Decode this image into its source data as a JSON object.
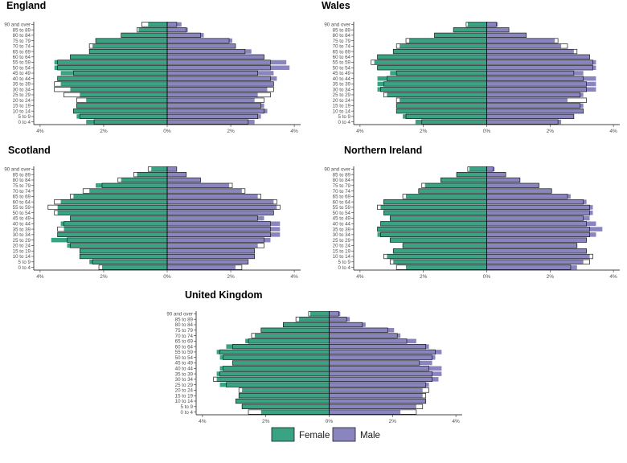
{
  "colors": {
    "female": "#3aa383",
    "male": "#8a85bf",
    "outline": "#1a1a1a",
    "axis": "#000000",
    "tick_text": "#4d4d4d"
  },
  "legend": {
    "female_label": "Female",
    "male_label": "Male"
  },
  "age_groups": [
    "0 to 4",
    "5 to 9",
    "10 to 14",
    "15 to 19",
    "20 to 24",
    "25 to 29",
    "30 to 34",
    "35 to 39",
    "40 to 44",
    "45 to 49",
    "50 to 54",
    "55 to 59",
    "60 to 64",
    "65 to 69",
    "70 to 74",
    "75 to 79",
    "80 to 84",
    "85 to 89",
    "90 and over"
  ],
  "x_ticks": [
    {
      "value": -4,
      "label": "4%"
    },
    {
      "value": -2,
      "label": "2%"
    },
    {
      "value": 0,
      "label": "0%"
    },
    {
      "value": 2,
      "label": "2%"
    },
    {
      "value": 4,
      "label": "4%"
    }
  ],
  "chart_data": [
    {
      "type": "population-pyramid",
      "title": "England",
      "xlim": [
        -4.2,
        4.2
      ],
      "unit": "% of population",
      "series": [
        {
          "name": "Female, filled bars (current)",
          "values": [
            2.55,
            2.85,
            2.95,
            2.85,
            2.55,
            2.75,
            3.05,
            3.35,
            3.45,
            3.35,
            3.55,
            3.55,
            3.05,
            2.45,
            2.35,
            2.25,
            1.45,
            0.9,
            0.6
          ]
        },
        {
          "name": "Female, outline bars (comparison)",
          "values": [
            2.3,
            2.75,
            2.95,
            2.85,
            2.85,
            3.25,
            3.55,
            3.55,
            3.45,
            2.95,
            3.45,
            3.45,
            3.05,
            2.45,
            2.45,
            2.25,
            1.45,
            0.95,
            0.8
          ]
        },
        {
          "name": "Male, filled bars (current)",
          "values": [
            2.75,
            2.95,
            3.15,
            3.05,
            2.75,
            2.85,
            3.15,
            3.35,
            3.45,
            3.35,
            3.85,
            3.75,
            3.05,
            2.65,
            2.15,
            2.05,
            1.15,
            0.65,
            0.45
          ]
        },
        {
          "name": "Male, outline bars (comparison)",
          "values": [
            2.55,
            2.85,
            3.05,
            2.95,
            3.05,
            3.25,
            3.35,
            3.35,
            3.25,
            2.85,
            3.25,
            3.25,
            3.05,
            2.45,
            2.15,
            1.95,
            1.05,
            0.6,
            0.3
          ]
        }
      ]
    },
    {
      "type": "population-pyramid",
      "title": "Wales",
      "xlim": [
        -4.2,
        4.2
      ],
      "unit": "% of population",
      "series": [
        {
          "name": "Female, filled bars (current)",
          "values": [
            2.25,
            2.65,
            2.85,
            2.85,
            2.75,
            3.15,
            3.45,
            3.45,
            3.45,
            3.05,
            3.45,
            3.55,
            3.45,
            2.95,
            2.75,
            2.45,
            1.65,
            1.05,
            0.6
          ]
        },
        {
          "name": "Female, outline bars (comparison)",
          "values": [
            2.05,
            2.55,
            2.85,
            2.85,
            2.85,
            3.25,
            3.35,
            3.25,
            3.15,
            2.85,
            3.45,
            3.65,
            3.45,
            2.95,
            2.85,
            2.55,
            1.65,
            1.05,
            0.65
          ]
        },
        {
          "name": "Male, filled bars (current)",
          "values": [
            2.35,
            2.75,
            3.05,
            3.05,
            2.55,
            3.05,
            3.45,
            3.45,
            3.45,
            3.05,
            3.45,
            3.45,
            3.25,
            2.75,
            2.35,
            2.15,
            1.25,
            0.7,
            0.35
          ]
        },
        {
          "name": "Male, outline bars (comparison)",
          "values": [
            2.25,
            2.75,
            3.05,
            2.95,
            3.15,
            2.95,
            3.15,
            3.15,
            3.05,
            2.75,
            3.35,
            3.35,
            3.25,
            2.85,
            2.55,
            2.25,
            1.25,
            0.7,
            0.3
          ]
        }
      ]
    },
    {
      "type": "population-pyramid",
      "title": "Scotland",
      "xlim": [
        -4.2,
        4.2
      ],
      "unit": "% of population",
      "series": [
        {
          "name": "Female, filled bars (current)",
          "values": [
            2.05,
            2.45,
            2.75,
            2.75,
            3.15,
            3.65,
            3.45,
            3.25,
            3.35,
            3.05,
            3.45,
            3.45,
            3.35,
            2.95,
            2.45,
            2.25,
            1.45,
            0.95,
            0.5
          ]
        },
        {
          "name": "Female, outline bars (comparison)",
          "values": [
            2.15,
            2.35,
            2.75,
            2.75,
            3.05,
            3.15,
            3.45,
            3.45,
            3.25,
            3.05,
            3.55,
            3.75,
            3.55,
            3.05,
            2.65,
            2.05,
            1.55,
            1.05,
            0.6
          ]
        },
        {
          "name": "Male, filled bars (current)",
          "values": [
            2.15,
            2.55,
            2.75,
            2.75,
            2.85,
            3.25,
            3.55,
            3.55,
            3.55,
            3.05,
            3.35,
            3.45,
            3.35,
            2.85,
            2.35,
            1.95,
            1.05,
            0.6,
            0.3
          ]
        },
        {
          "name": "Male, outline bars (comparison)",
          "values": [
            2.35,
            2.55,
            2.75,
            2.75,
            3.05,
            3.05,
            3.25,
            3.25,
            3.25,
            2.85,
            3.35,
            3.55,
            3.45,
            2.95,
            2.45,
            2.05,
            1.05,
            0.6,
            0.3
          ]
        }
      ]
    },
    {
      "type": "population-pyramid",
      "title": "Northern Ireland",
      "xlim": [
        -4.2,
        4.2
      ],
      "unit": "% of population",
      "series": [
        {
          "name": "Female, filled bars (current)",
          "values": [
            2.55,
            2.95,
            3.15,
            2.95,
            2.65,
            3.05,
            3.45,
            3.45,
            3.35,
            3.05,
            3.25,
            3.35,
            3.25,
            2.55,
            2.15,
            1.95,
            1.45,
            0.95,
            0.55
          ]
        },
        {
          "name": "Female, outline bars (comparison)",
          "values": [
            2.85,
            3.05,
            3.25,
            2.95,
            2.65,
            3.05,
            3.35,
            3.45,
            3.35,
            3.05,
            3.25,
            3.45,
            3.25,
            2.65,
            2.15,
            2.05,
            1.45,
            0.95,
            0.6
          ]
        },
        {
          "name": "Male, filled bars (current)",
          "values": [
            2.85,
            3.05,
            3.25,
            3.15,
            2.85,
            3.15,
            3.45,
            3.65,
            3.45,
            3.25,
            3.35,
            3.35,
            3.15,
            2.65,
            2.05,
            1.65,
            1.05,
            0.6,
            0.25
          ]
        },
        {
          "name": "Male, outline bars (comparison)",
          "values": [
            2.65,
            3.25,
            3.35,
            3.15,
            2.85,
            3.15,
            3.25,
            3.25,
            3.15,
            3.05,
            3.25,
            3.25,
            3.05,
            2.55,
            2.05,
            1.65,
            1.05,
            0.6,
            0.2
          ]
        }
      ]
    },
    {
      "type": "population-pyramid",
      "title": "United Kingdom",
      "xlim": [
        -4.2,
        4.2
      ],
      "unit": "% of population",
      "series": [
        {
          "name": "Female, filled bars (current)",
          "values": [
            2.15,
            2.75,
            2.95,
            2.85,
            2.75,
            3.45,
            3.55,
            3.55,
            3.45,
            3.05,
            3.45,
            3.55,
            3.25,
            2.65,
            2.35,
            2.15,
            1.45,
            0.95,
            0.6
          ]
        },
        {
          "name": "Female, outline bars (comparison)",
          "values": [
            2.55,
            2.75,
            2.95,
            2.85,
            2.85,
            3.25,
            3.65,
            3.45,
            3.35,
            3.05,
            3.35,
            3.45,
            3.05,
            2.55,
            2.45,
            2.15,
            1.45,
            1.05,
            0.65
          ]
        },
        {
          "name": "Male, filled bars (current)",
          "values": [
            2.25,
            2.75,
            3.05,
            2.95,
            2.95,
            3.15,
            3.45,
            3.55,
            3.55,
            3.25,
            3.35,
            3.55,
            3.15,
            2.75,
            2.25,
            2.05,
            1.15,
            0.65,
            0.35
          ]
        },
        {
          "name": "Male, outline bars (comparison)",
          "values": [
            2.75,
            2.95,
            3.05,
            3.05,
            3.15,
            3.05,
            3.25,
            3.25,
            3.15,
            2.85,
            3.25,
            3.35,
            3.05,
            2.45,
            2.15,
            1.85,
            1.05,
            0.55,
            0.3
          ]
        }
      ]
    }
  ]
}
